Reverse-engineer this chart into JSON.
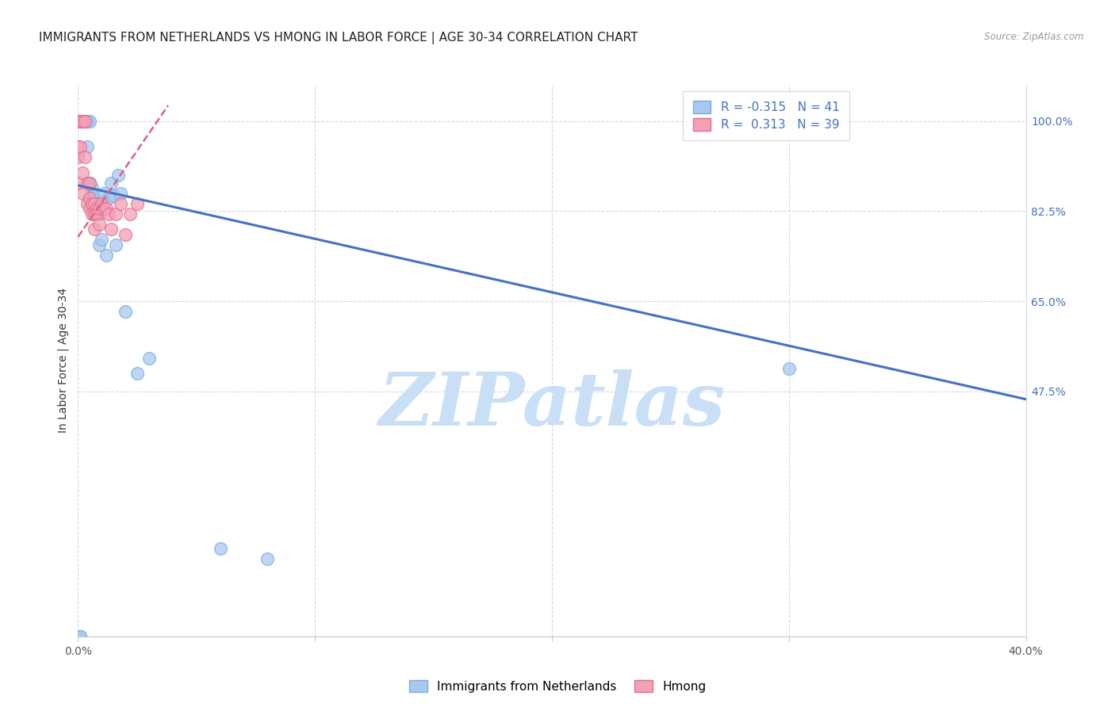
{
  "title": "IMMIGRANTS FROM NETHERLANDS VS HMONG IN LABOR FORCE | AGE 30-34 CORRELATION CHART",
  "source": "Source: ZipAtlas.com",
  "ylabel": "In Labor Force | Age 30-34",
  "xlim": [
    0.0,
    0.4
  ],
  "ylim": [
    0.0,
    1.07
  ],
  "xtick_positions": [
    0.0,
    0.1,
    0.2,
    0.3,
    0.4
  ],
  "xticklabels": [
    "0.0%",
    "",
    "",
    "",
    "40.0%"
  ],
  "ytick_positions": [
    0.475,
    0.65,
    0.825,
    1.0
  ],
  "ytick_labels": [
    "47.5%",
    "65.0%",
    "82.5%",
    "100.0%"
  ],
  "netherlands_color": "#a8c8f0",
  "netherlands_edge_color": "#7aaee0",
  "hmong_color": "#f4a0b5",
  "hmong_edge_color": "#e07090",
  "netherlands_trend_color": "#4472c4",
  "hmong_trend_color": "#e06080",
  "netherlands_R": -0.315,
  "netherlands_N": 41,
  "hmong_R": 0.313,
  "hmong_N": 39,
  "netherlands_trend_x": [
    0.0,
    0.4
  ],
  "netherlands_trend_y": [
    0.875,
    0.46
  ],
  "hmong_trend_x": [
    0.0,
    0.038
  ],
  "hmong_trend_y": [
    0.775,
    1.03
  ],
  "netherlands_scatter_x": [
    0.001,
    0.001,
    0.002,
    0.003,
    0.003,
    0.003,
    0.003,
    0.004,
    0.004,
    0.004,
    0.004,
    0.005,
    0.005,
    0.005,
    0.005,
    0.006,
    0.006,
    0.006,
    0.007,
    0.007,
    0.008,
    0.008,
    0.009,
    0.009,
    0.01,
    0.01,
    0.01,
    0.011,
    0.012,
    0.013,
    0.014,
    0.015,
    0.016,
    0.017,
    0.018,
    0.02,
    0.025,
    0.03,
    0.06,
    0.08,
    0.3
  ],
  "netherlands_scatter_y": [
    0.0,
    0.0,
    1.0,
    1.0,
    1.0,
    1.0,
    1.0,
    1.0,
    1.0,
    1.0,
    0.95,
    1.0,
    0.88,
    0.88,
    0.85,
    0.87,
    0.855,
    0.84,
    0.855,
    0.83,
    0.84,
    0.83,
    0.82,
    0.76,
    0.83,
    0.84,
    0.77,
    0.86,
    0.74,
    0.85,
    0.88,
    0.855,
    0.76,
    0.895,
    0.86,
    0.63,
    0.51,
    0.54,
    0.17,
    0.15,
    0.52
  ],
  "hmong_scatter_x": [
    0.0,
    0.0,
    0.0,
    0.0,
    0.0,
    0.0,
    0.0,
    0.001,
    0.001,
    0.001,
    0.002,
    0.002,
    0.002,
    0.003,
    0.003,
    0.004,
    0.004,
    0.005,
    0.005,
    0.005,
    0.006,
    0.006,
    0.007,
    0.007,
    0.007,
    0.008,
    0.008,
    0.009,
    0.009,
    0.01,
    0.011,
    0.012,
    0.013,
    0.014,
    0.016,
    0.018,
    0.02,
    0.022,
    0.025
  ],
  "hmong_scatter_y": [
    1.0,
    1.0,
    1.0,
    1.0,
    0.95,
    0.93,
    0.88,
    1.0,
    1.0,
    0.95,
    1.0,
    0.9,
    0.86,
    1.0,
    0.93,
    0.88,
    0.84,
    0.88,
    0.85,
    0.83,
    0.84,
    0.82,
    0.84,
    0.82,
    0.79,
    0.83,
    0.82,
    0.83,
    0.8,
    0.84,
    0.83,
    0.83,
    0.82,
    0.79,
    0.82,
    0.84,
    0.78,
    0.82,
    0.84
  ],
  "watermark": "ZIPatlas",
  "watermark_color": "#c8dff5",
  "grid_color": "#d0d8e8",
  "background_color": "#ffffff",
  "title_fontsize": 11,
  "axis_label_fontsize": 10,
  "tick_fontsize": 10,
  "legend_fontsize": 11
}
